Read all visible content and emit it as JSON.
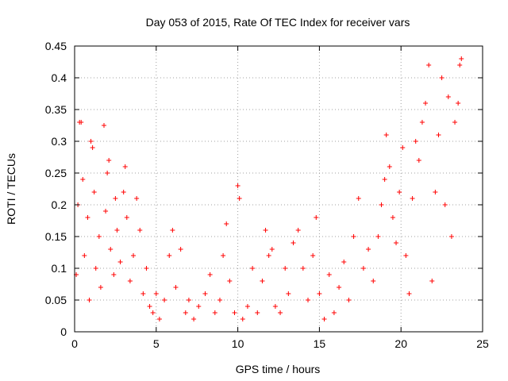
{
  "chart_data": {
    "type": "scatter",
    "title": "Day 053 of 2015, Rate Of TEC Index for receiver vars",
    "xlabel": "GPS time / hours",
    "ylabel": "ROTI / TECUs",
    "xlim": [
      0,
      25
    ],
    "ylim": [
      0,
      0.45
    ],
    "x_ticks": [
      0,
      5,
      10,
      15,
      20,
      25
    ],
    "x_tick_labels": [
      "0",
      "5",
      "10",
      "15",
      "20",
      "25"
    ],
    "y_ticks": [
      0,
      0.05,
      0.1,
      0.15,
      0.2,
      0.25,
      0.3,
      0.35,
      0.4,
      0.45
    ],
    "y_tick_labels": [
      "0",
      "0.05",
      "0.1",
      "0.15",
      "0.2",
      "0.25",
      "0.3",
      "0.35",
      "0.4",
      "0.45"
    ],
    "grid": true,
    "marker": "+",
    "color": "#ff0000",
    "series": [
      {
        "name": "ROTI",
        "points": [
          [
            0.1,
            0.09
          ],
          [
            0.2,
            0.2
          ],
          [
            0.3,
            0.33
          ],
          [
            0.4,
            0.33
          ],
          [
            0.5,
            0.24
          ],
          [
            0.6,
            0.12
          ],
          [
            0.8,
            0.18
          ],
          [
            0.9,
            0.05
          ],
          [
            1.0,
            0.3
          ],
          [
            1.1,
            0.29
          ],
          [
            1.2,
            0.22
          ],
          [
            1.3,
            0.1
          ],
          [
            1.5,
            0.15
          ],
          [
            1.6,
            0.07
          ],
          [
            1.8,
            0.325
          ],
          [
            1.9,
            0.19
          ],
          [
            2.0,
            0.25
          ],
          [
            2.1,
            0.27
          ],
          [
            2.2,
            0.13
          ],
          [
            2.4,
            0.09
          ],
          [
            2.5,
            0.21
          ],
          [
            2.6,
            0.16
          ],
          [
            2.8,
            0.11
          ],
          [
            3.0,
            0.22
          ],
          [
            3.1,
            0.26
          ],
          [
            3.2,
            0.18
          ],
          [
            3.4,
            0.08
          ],
          [
            3.6,
            0.12
          ],
          [
            3.8,
            0.21
          ],
          [
            4.0,
            0.16
          ],
          [
            4.2,
            0.06
          ],
          [
            4.4,
            0.1
          ],
          [
            4.6,
            0.04
          ],
          [
            4.8,
            0.03
          ],
          [
            5.0,
            0.06
          ],
          [
            5.2,
            0.02
          ],
          [
            5.5,
            0.05
          ],
          [
            5.8,
            0.12
          ],
          [
            6.0,
            0.16
          ],
          [
            6.2,
            0.07
          ],
          [
            6.5,
            0.13
          ],
          [
            6.8,
            0.03
          ],
          [
            7.0,
            0.05
          ],
          [
            7.3,
            0.02
          ],
          [
            7.6,
            0.04
          ],
          [
            8.0,
            0.06
          ],
          [
            8.3,
            0.09
          ],
          [
            8.6,
            0.03
          ],
          [
            8.9,
            0.05
          ],
          [
            9.1,
            0.12
          ],
          [
            9.3,
            0.17
          ],
          [
            9.5,
            0.08
          ],
          [
            9.8,
            0.03
          ],
          [
            10.0,
            0.23
          ],
          [
            10.1,
            0.21
          ],
          [
            10.3,
            0.02
          ],
          [
            10.6,
            0.04
          ],
          [
            10.9,
            0.1
          ],
          [
            11.2,
            0.03
          ],
          [
            11.5,
            0.08
          ],
          [
            11.7,
            0.16
          ],
          [
            11.9,
            0.12
          ],
          [
            12.1,
            0.13
          ],
          [
            12.3,
            0.04
          ],
          [
            12.6,
            0.03
          ],
          [
            12.9,
            0.1
          ],
          [
            13.1,
            0.06
          ],
          [
            13.4,
            0.14
          ],
          [
            13.7,
            0.16
          ],
          [
            14.0,
            0.1
          ],
          [
            14.3,
            0.05
          ],
          [
            14.6,
            0.12
          ],
          [
            14.8,
            0.18
          ],
          [
            15.0,
            0.06
          ],
          [
            15.3,
            0.02
          ],
          [
            15.6,
            0.09
          ],
          [
            15.9,
            0.03
          ],
          [
            16.2,
            0.07
          ],
          [
            16.5,
            0.11
          ],
          [
            16.8,
            0.05
          ],
          [
            17.1,
            0.15
          ],
          [
            17.4,
            0.21
          ],
          [
            17.7,
            0.1
          ],
          [
            18.0,
            0.13
          ],
          [
            18.3,
            0.08
          ],
          [
            18.6,
            0.15
          ],
          [
            18.8,
            0.2
          ],
          [
            19.0,
            0.24
          ],
          [
            19.1,
            0.31
          ],
          [
            19.3,
            0.26
          ],
          [
            19.5,
            0.18
          ],
          [
            19.7,
            0.14
          ],
          [
            19.9,
            0.22
          ],
          [
            20.1,
            0.29
          ],
          [
            20.3,
            0.12
          ],
          [
            20.5,
            0.06
          ],
          [
            20.7,
            0.21
          ],
          [
            20.9,
            0.3
          ],
          [
            21.1,
            0.27
          ],
          [
            21.3,
            0.33
          ],
          [
            21.5,
            0.36
          ],
          [
            21.7,
            0.42
          ],
          [
            21.9,
            0.08
          ],
          [
            22.1,
            0.22
          ],
          [
            22.3,
            0.31
          ],
          [
            22.5,
            0.4
          ],
          [
            22.7,
            0.2
          ],
          [
            22.9,
            0.37
          ],
          [
            23.1,
            0.15
          ],
          [
            23.3,
            0.33
          ],
          [
            23.5,
            0.36
          ],
          [
            23.6,
            0.42
          ],
          [
            23.7,
            0.43
          ]
        ]
      }
    ]
  }
}
